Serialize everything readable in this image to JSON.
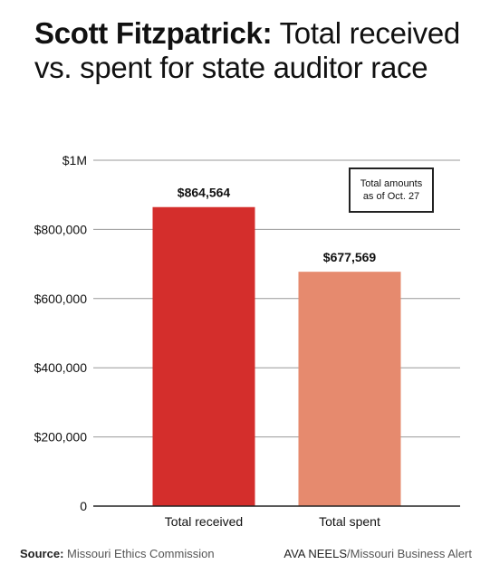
{
  "title": {
    "bold_part": "Scott Fitzpatrick:",
    "rest": " Total received vs. spent for state auditor race"
  },
  "note": {
    "line1": "Total amounts",
    "line2": "as of Oct. 27"
  },
  "footer": {
    "source_label": "Source:",
    "source_value": "Missouri Ethics Commission",
    "credit_name": "AVA NEELS",
    "credit_org": "/Missouri Business Alert"
  },
  "colors": {
    "received": "#d42e2c",
    "spent": "#e68a6e",
    "grid": "#999999",
    "axis": "#222222"
  },
  "chart_data": {
    "type": "bar",
    "title": "Scott Fitzpatrick: Total received vs. spent for state auditor race",
    "categories": [
      "Total received",
      "Total spent"
    ],
    "values": [
      864564,
      677569
    ],
    "data_labels": [
      "$864,564",
      "$677,569"
    ],
    "ylim": [
      0,
      1000000
    ],
    "yticks": [
      0,
      200000,
      400000,
      600000,
      800000,
      1000000
    ],
    "ytick_labels": [
      "0",
      "$200,000",
      "$400,000",
      "$600,000",
      "$800,000",
      "$1M"
    ],
    "xlabel": "",
    "ylabel": "",
    "grid": true,
    "legend": "none"
  }
}
